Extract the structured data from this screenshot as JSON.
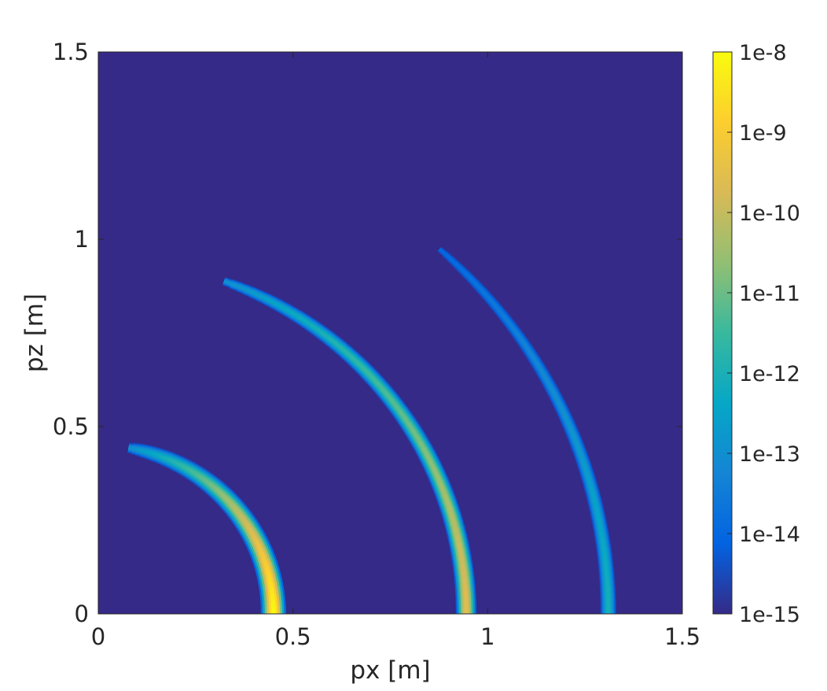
{
  "chart_data": {
    "type": "heatmap",
    "xlabel": "px [m]",
    "ylabel": "pz [m]",
    "xlim": [
      0,
      1.5
    ],
    "ylim": [
      0,
      1.5
    ],
    "x_ticks": [
      {
        "value": 0,
        "label": "0"
      },
      {
        "value": 0.5,
        "label": "0.5"
      },
      {
        "value": 1,
        "label": "1"
      },
      {
        "value": 1.5,
        "label": "1.5"
      }
    ],
    "y_ticks": [
      {
        "value": 0,
        "label": "0"
      },
      {
        "value": 0.5,
        "label": "0.5"
      },
      {
        "value": 1,
        "label": "1"
      },
      {
        "value": 1.5,
        "label": "1.5"
      }
    ],
    "background_value": 1e-15,
    "colorbar": {
      "scale": "log",
      "range": [
        1e-15,
        1e-08
      ],
      "colormap": "parula",
      "ticks": [
        {
          "value": 1e-08,
          "label": "1e-8"
        },
        {
          "value": 1e-09,
          "label": "1e-9"
        },
        {
          "value": 1e-10,
          "label": "1e-10"
        },
        {
          "value": 1e-11,
          "label": "1e-11"
        },
        {
          "value": 1e-12,
          "label": "1e-12"
        },
        {
          "value": 1e-13,
          "label": "1e-13"
        },
        {
          "value": 1e-14,
          "label": "1e-14"
        },
        {
          "value": 1e-15,
          "label": "1e-15"
        }
      ]
    },
    "arcs": [
      {
        "radius": 0.45,
        "angle_start_deg": 0,
        "angle_end_deg": 80,
        "peak_value": 1e-08,
        "tip_value": 1e-13
      },
      {
        "radius": 0.945,
        "angle_start_deg": 0,
        "angle_end_deg": 70,
        "peak_value": 3e-10,
        "tip_value": 1e-13
      },
      {
        "radius": 1.31,
        "angle_start_deg": 0,
        "angle_end_deg": 48,
        "peak_value": 1e-12,
        "tip_value": 1e-14
      }
    ],
    "grid": false
  },
  "colors": {
    "background": "#352a87",
    "parula_stops": [
      "#352a87",
      "#0363e1",
      "#1485d4",
      "#06a7c6",
      "#38b99e",
      "#92bf73",
      "#d9ba56",
      "#fcce2e",
      "#f9fb0e"
    ]
  }
}
